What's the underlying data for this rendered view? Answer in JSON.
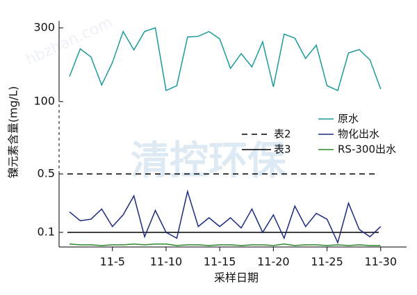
{
  "chart_data": {
    "type": "line",
    "xlabel": "采样日期",
    "ylabel": "镍元素含量(mg/L)",
    "watermark": "清控环保",
    "watermark_url": "hbzhan.com",
    "categories": [
      null,
      null,
      null,
      null,
      "11-5",
      null,
      null,
      null,
      null,
      "11-10",
      null,
      null,
      null,
      null,
      "11-15",
      null,
      null,
      null,
      null,
      "11-20",
      null,
      null,
      null,
      null,
      "11-25",
      null,
      null,
      null,
      null,
      "11-30"
    ],
    "series": [
      {
        "name": "原水",
        "color": "#1a9a9a",
        "values": [
          168,
          243,
          221,
          145,
          206,
          290,
          240,
          290,
          300,
          130,
          143,
          275,
          277,
          290,
          270,
          190,
          230,
          194,
          262,
          140,
          283,
          272,
          217,
          253,
          143,
          130,
          232,
          241,
          213,
          134
        ]
      },
      {
        "name": "物化出水",
        "color": "#1c2a80",
        "values": [
          0.24,
          0.18,
          0.19,
          0.26,
          0.14,
          0.22,
          0.35,
          0.07,
          0.25,
          0.1,
          0.06,
          0.38,
          0.14,
          0.2,
          0.14,
          0.2,
          0.13,
          0.26,
          0.1,
          0.22,
          0.06,
          0.28,
          0.14,
          0.23,
          0.19,
          0.03,
          0.3,
          0.12,
          0.07,
          0.14
        ]
      },
      {
        "name": "RS-300出水",
        "color": "#2a8a2a",
        "values": [
          0.02,
          0.015,
          0.015,
          0.01,
          0.015,
          0.015,
          0.02,
          0.015,
          0.02,
          0.02,
          0.01,
          0.015,
          0.015,
          0.01,
          0.015,
          0.015,
          0.01,
          0.015,
          0.015,
          0.01,
          0.02,
          0.01,
          0.015,
          0.015,
          0.01,
          0.015,
          0.01,
          0.015,
          0.01,
          0.01
        ]
      }
    ],
    "reference_lines": [
      {
        "name": "表2",
        "value": 0.5,
        "color": "#000000",
        "style": "dashed"
      },
      {
        "name": "表3",
        "value": 0.1,
        "color": "#000000",
        "style": "solid"
      }
    ],
    "ylim": [
      0,
      300
    ],
    "ybreak": [
      0.5,
      100
    ],
    "yticks": [
      0.1,
      0.5,
      100,
      300
    ]
  }
}
